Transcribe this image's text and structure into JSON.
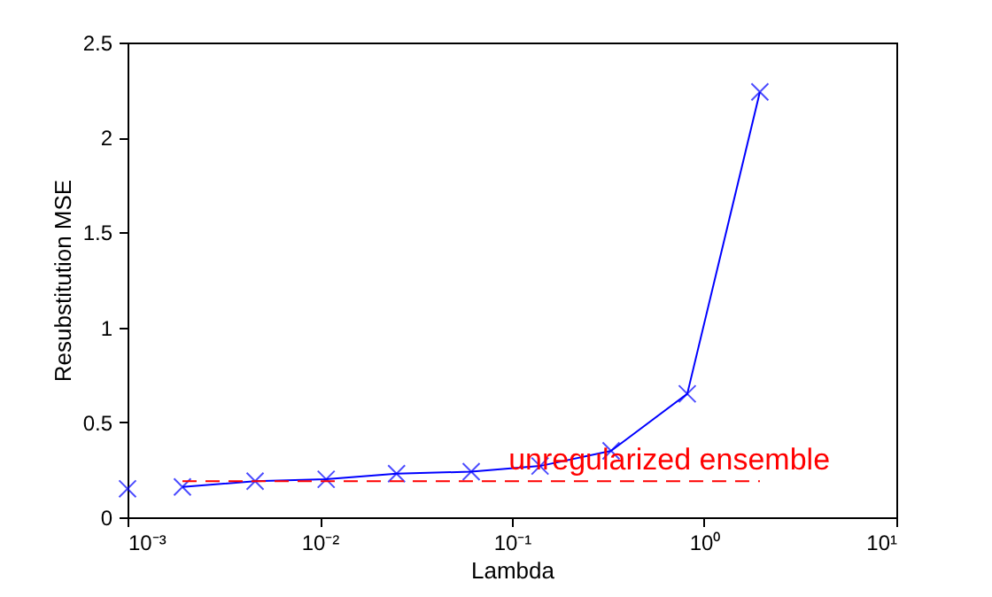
{
  "chart_data": {
    "type": "line",
    "xlabel": "Lambda",
    "ylabel": "Resubstitution MSE",
    "log": "x",
    "marker": "cross",
    "grid": false,
    "xlim": [
      0.001,
      10
    ],
    "xticks": [
      {
        "value": 0.001,
        "label": "10⁻³"
      },
      {
        "value": 0.01,
        "label": "10⁻²"
      },
      {
        "value": 0.1,
        "label": "10⁻¹"
      },
      {
        "value": 1,
        "label": "10⁰"
      },
      {
        "value": 10,
        "label": "10¹"
      }
    ],
    "ylim": [
      0,
      2.5
    ],
    "yticks": [
      0,
      0.5,
      1,
      1.5,
      2,
      2.5
    ],
    "series": [
      {
        "color": "#0000ff",
        "x": [
          0.00193,
          0.00461,
          0.0108,
          0.0251,
          0.0614,
          0.14,
          0.328,
          0.817,
          1.95
        ],
        "values": [
          0.16,
          0.19,
          0.2,
          0.23,
          0.24,
          0.27,
          0.35,
          0.65,
          2.24
        ]
      },
      {
        "type": "scatter",
        "color": "#0000ff",
        "x": [
          0.001
        ],
        "values": [
          0.15
        ]
      },
      {
        "type": "line",
        "color": "#ff0000",
        "line_style": "dashed",
        "marker": "none",
        "x": [
          0.00193,
          1.95
        ],
        "values": [
          0.19,
          0.19
        ]
      }
    ],
    "annotations": [
      {
        "text": "unregularized ensemble",
        "x": 0.096,
        "y": 0.3
      }
    ]
  }
}
